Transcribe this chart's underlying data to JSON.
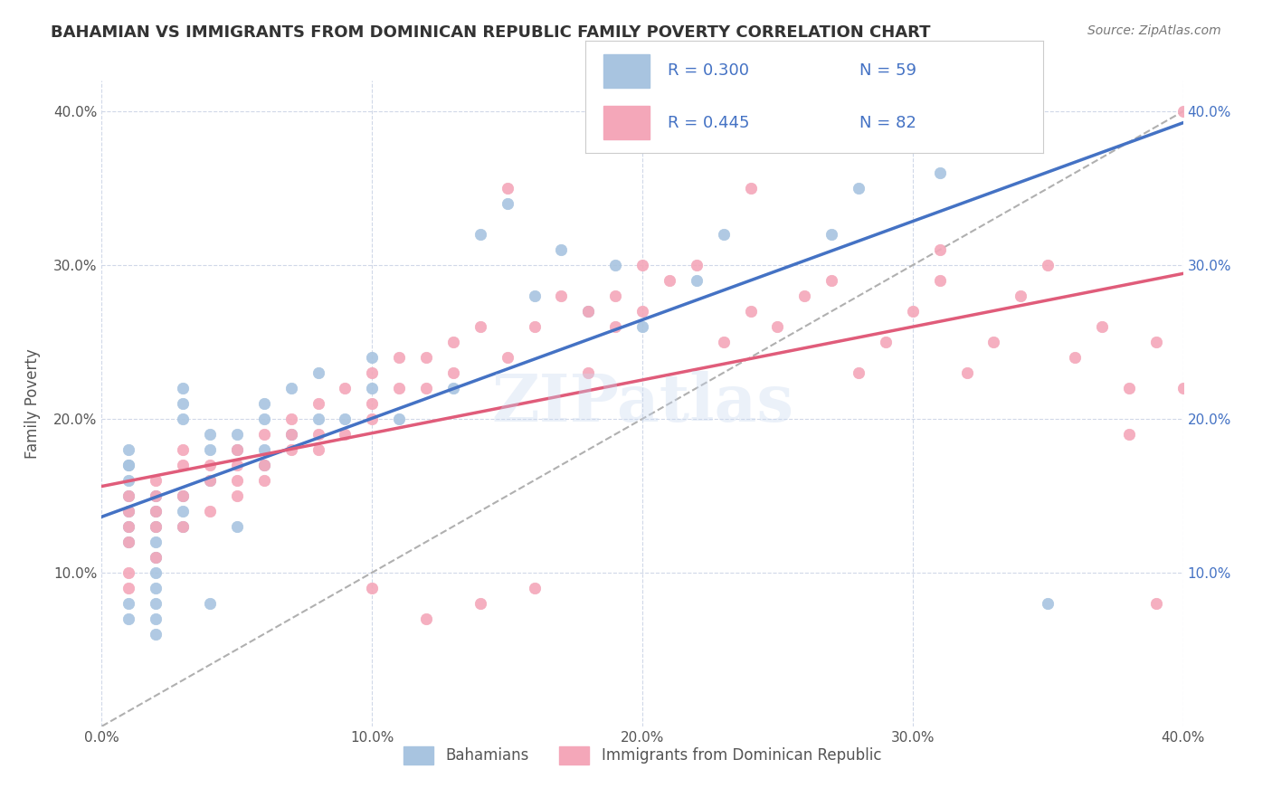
{
  "title": "BAHAMIAN VS IMMIGRANTS FROM DOMINICAN REPUBLIC FAMILY POVERTY CORRELATION CHART",
  "source_text": "Source: ZipAtlas.com",
  "xlabel": "",
  "ylabel": "Family Poverty",
  "xlim": [
    0.0,
    0.4
  ],
  "ylim": [
    0.0,
    0.42
  ],
  "x_tick_labels": [
    "0.0%",
    "10.0%",
    "20.0%",
    "30.0%",
    "40.0%"
  ],
  "x_tick_vals": [
    0.0,
    0.1,
    0.2,
    0.3,
    0.4
  ],
  "y_tick_labels": [
    "10.0%",
    "20.0%",
    "30.0%",
    "40.0%"
  ],
  "y_tick_vals": [
    0.1,
    0.2,
    0.3,
    0.4
  ],
  "right_y_tick_labels": [
    "10.0%",
    "20.0%",
    "30.0%",
    "40.0%"
  ],
  "right_y_tick_vals": [
    0.1,
    0.2,
    0.3,
    0.4
  ],
  "bahamian_color": "#a8c4e0",
  "dominican_color": "#f4a7b9",
  "bahamian_line_color": "#4472C4",
  "dominican_line_color": "#E05C7A",
  "diagonal_color": "#b0b0b0",
  "R_bahamian": 0.3,
  "N_bahamian": 59,
  "R_dominican": 0.445,
  "N_dominican": 82,
  "legend_label_1": "Bahamians",
  "legend_label_2": "Immigrants from Dominican Republic",
  "watermark": "ZIPatlas",
  "background_color": "#ffffff",
  "grid_color": "#d0d8e8",
  "title_color": "#333333",
  "axis_label_color": "#555555",
  "tick_color": "#555555",
  "legend_text_color": "#4472C4",
  "bahamian_scatter_x": [
    0.01,
    0.01,
    0.01,
    0.01,
    0.01,
    0.01,
    0.01,
    0.01,
    0.01,
    0.01,
    0.02,
    0.02,
    0.02,
    0.02,
    0.02,
    0.02,
    0.02,
    0.02,
    0.02,
    0.02,
    0.03,
    0.03,
    0.03,
    0.03,
    0.03,
    0.03,
    0.04,
    0.04,
    0.04,
    0.04,
    0.05,
    0.05,
    0.05,
    0.06,
    0.06,
    0.06,
    0.06,
    0.07,
    0.07,
    0.08,
    0.08,
    0.09,
    0.1,
    0.1,
    0.11,
    0.13,
    0.14,
    0.15,
    0.16,
    0.17,
    0.18,
    0.19,
    0.2,
    0.22,
    0.23,
    0.27,
    0.28,
    0.31,
    0.35
  ],
  "bahamian_scatter_y": [
    0.12,
    0.13,
    0.14,
    0.15,
    0.16,
    0.17,
    0.17,
    0.18,
    0.07,
    0.08,
    0.1,
    0.11,
    0.12,
    0.13,
    0.14,
    0.15,
    0.08,
    0.09,
    0.07,
    0.06,
    0.13,
    0.14,
    0.15,
    0.2,
    0.21,
    0.22,
    0.18,
    0.19,
    0.16,
    0.08,
    0.18,
    0.19,
    0.13,
    0.17,
    0.18,
    0.2,
    0.21,
    0.19,
    0.22,
    0.2,
    0.23,
    0.2,
    0.22,
    0.24,
    0.2,
    0.22,
    0.32,
    0.34,
    0.28,
    0.31,
    0.27,
    0.3,
    0.26,
    0.29,
    0.32,
    0.32,
    0.35,
    0.36,
    0.08
  ],
  "dominican_scatter_x": [
    0.01,
    0.01,
    0.01,
    0.01,
    0.01,
    0.01,
    0.02,
    0.02,
    0.02,
    0.02,
    0.02,
    0.03,
    0.03,
    0.03,
    0.03,
    0.04,
    0.04,
    0.04,
    0.05,
    0.05,
    0.05,
    0.05,
    0.06,
    0.06,
    0.06,
    0.07,
    0.07,
    0.07,
    0.08,
    0.08,
    0.08,
    0.09,
    0.09,
    0.1,
    0.1,
    0.1,
    0.11,
    0.11,
    0.12,
    0.12,
    0.13,
    0.13,
    0.14,
    0.15,
    0.15,
    0.16,
    0.17,
    0.18,
    0.18,
    0.19,
    0.19,
    0.2,
    0.2,
    0.21,
    0.22,
    0.23,
    0.24,
    0.25,
    0.26,
    0.27,
    0.28,
    0.29,
    0.3,
    0.31,
    0.31,
    0.32,
    0.33,
    0.34,
    0.35,
    0.36,
    0.37,
    0.38,
    0.38,
    0.39,
    0.39,
    0.4,
    0.4,
    0.24,
    0.16,
    0.14,
    0.12,
    0.1
  ],
  "dominican_scatter_y": [
    0.12,
    0.13,
    0.14,
    0.15,
    0.09,
    0.1,
    0.11,
    0.13,
    0.14,
    0.15,
    0.16,
    0.13,
    0.15,
    0.17,
    0.18,
    0.14,
    0.16,
    0.17,
    0.15,
    0.16,
    0.17,
    0.18,
    0.16,
    0.17,
    0.19,
    0.18,
    0.2,
    0.19,
    0.18,
    0.19,
    0.21,
    0.19,
    0.22,
    0.2,
    0.21,
    0.23,
    0.22,
    0.24,
    0.22,
    0.24,
    0.23,
    0.25,
    0.26,
    0.24,
    0.35,
    0.26,
    0.28,
    0.23,
    0.27,
    0.26,
    0.28,
    0.27,
    0.3,
    0.29,
    0.3,
    0.25,
    0.27,
    0.26,
    0.28,
    0.29,
    0.23,
    0.25,
    0.27,
    0.29,
    0.31,
    0.23,
    0.25,
    0.28,
    0.3,
    0.24,
    0.26,
    0.19,
    0.22,
    0.25,
    0.08,
    0.22,
    0.4,
    0.35,
    0.09,
    0.08,
    0.07,
    0.09
  ]
}
